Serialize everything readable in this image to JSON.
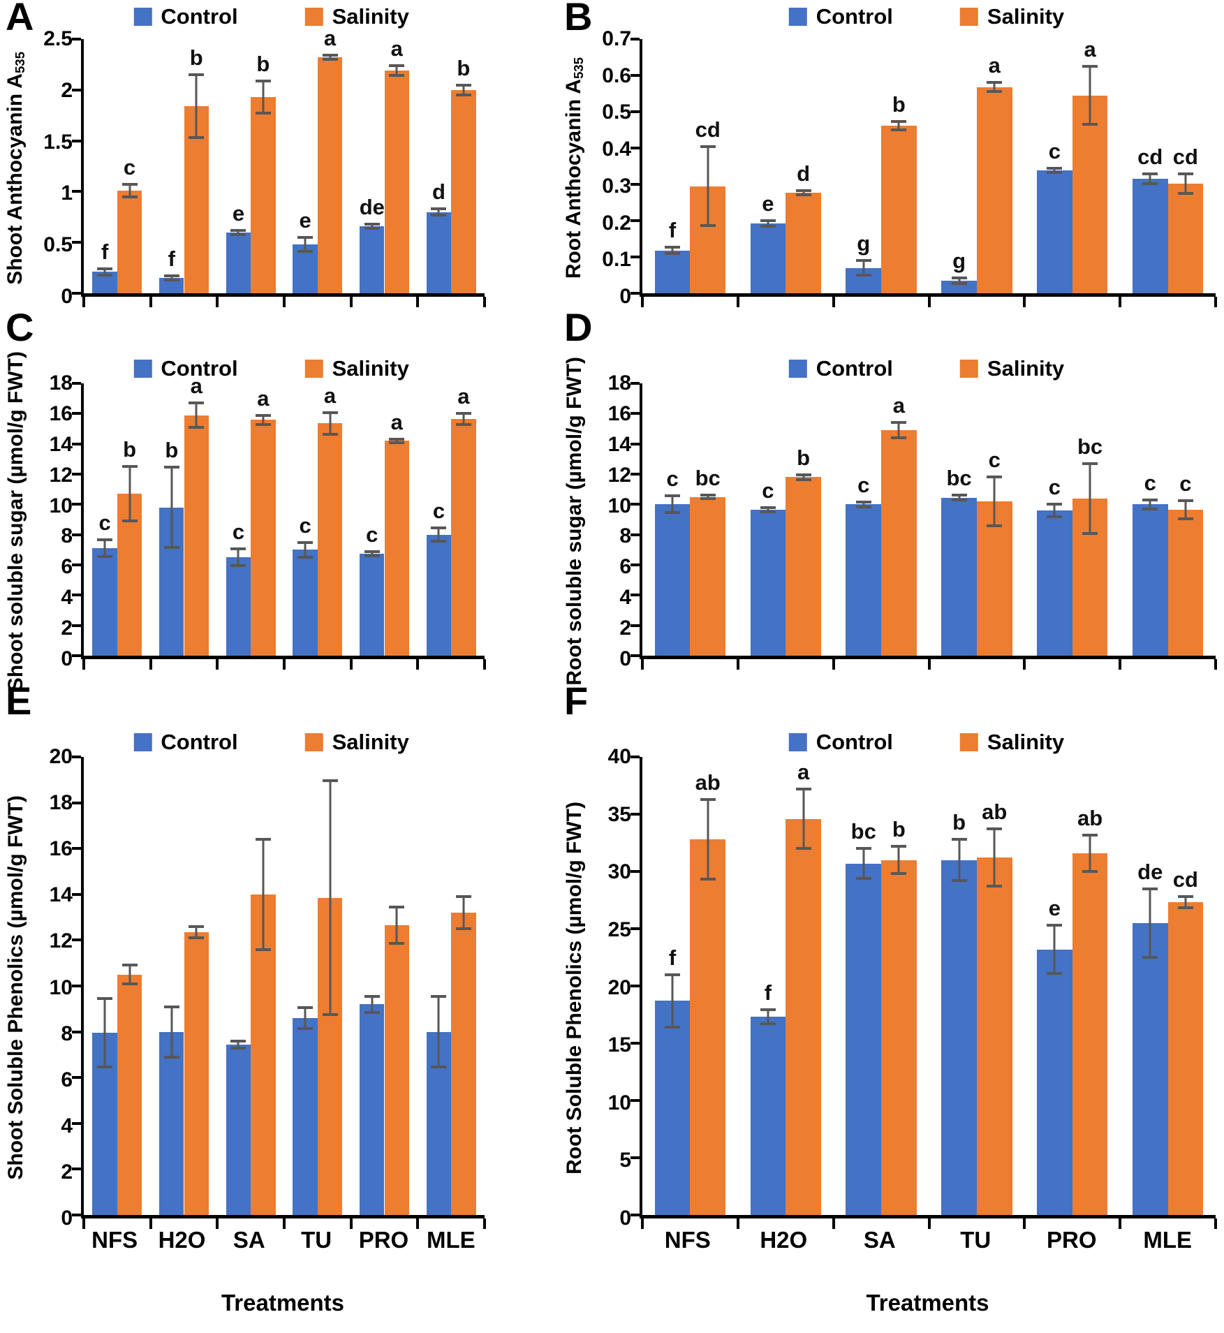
{
  "legend": {
    "control_label": "Control",
    "salinity_label": "Salinity"
  },
  "colors": {
    "control": "#4472C4",
    "salinity": "#ED7D31",
    "error_bar": "#575757",
    "axis": "#000000"
  },
  "x_axis": {
    "categories": [
      "NFS",
      "H2O",
      "SA",
      "TU",
      "PRO",
      "MLE"
    ],
    "title": "Treatments"
  },
  "chart_data": [
    {
      "id": "A",
      "type": "bar",
      "row": "r1",
      "col": "c1",
      "ylabel": "Shoot Anthocyanin A",
      "ylabel_sub": "535",
      "ylim": [
        0,
        2.5
      ],
      "yticks": [
        "0",
        "0.5",
        "1",
        "1.5",
        "2",
        "2.5"
      ],
      "categories": [
        "NFS",
        "H2O",
        "SA",
        "TU",
        "PRO",
        "MLE"
      ],
      "show_x_labels": false,
      "show_x_title": false,
      "series": [
        {
          "name": "Control",
          "values": [
            0.21,
            0.15,
            0.6,
            0.48,
            0.66,
            0.8
          ],
          "errors": [
            0.03,
            0.02,
            0.02,
            0.07,
            0.02,
            0.03
          ],
          "letters": [
            "f",
            "f",
            "e",
            "e",
            "de",
            "d"
          ]
        },
        {
          "name": "Salinity",
          "values": [
            1.01,
            1.84,
            1.93,
            2.32,
            2.19,
            2.0
          ],
          "errors": [
            0.06,
            0.31,
            0.16,
            0.02,
            0.05,
            0.05
          ],
          "letters": [
            "c",
            "b",
            "b",
            "a",
            "a",
            "b"
          ]
        }
      ]
    },
    {
      "id": "B",
      "type": "bar",
      "row": "r1",
      "col": "c2",
      "ylabel": "Root Anthocyanin A",
      "ylabel_sub": "535",
      "ylim": [
        0,
        0.7
      ],
      "yticks": [
        "0",
        "0.1",
        "0.2",
        "0.3",
        "0.4",
        "0.5",
        "0.6",
        "0.7"
      ],
      "categories": [
        "NFS",
        "H2O",
        "SA",
        "TU",
        "PRO",
        "MLE"
      ],
      "show_x_labels": false,
      "show_x_title": false,
      "series": [
        {
          "name": "Control",
          "values": [
            0.118,
            0.192,
            0.07,
            0.035,
            0.338,
            0.315
          ],
          "errors": [
            0.008,
            0.008,
            0.02,
            0.008,
            0.006,
            0.013
          ],
          "letters": [
            "f",
            "e",
            "g",
            "g",
            "c",
            "cd"
          ]
        },
        {
          "name": "Salinity",
          "values": [
            0.295,
            0.277,
            0.462,
            0.568,
            0.545,
            0.302
          ],
          "errors": [
            0.108,
            0.005,
            0.012,
            0.012,
            0.08,
            0.027
          ],
          "letters": [
            "cd",
            "d",
            "b",
            "a",
            "a",
            "cd"
          ]
        }
      ]
    },
    {
      "id": "C",
      "type": "bar",
      "row": "r2",
      "col": "c1",
      "ylabel": "Shoot soluble sugar (µmol/g FWT)",
      "ylabel_sub": "",
      "ylim": [
        0,
        18
      ],
      "yticks": [
        "0",
        "2",
        "4",
        "6",
        "8",
        "10",
        "12",
        "14",
        "16",
        "18"
      ],
      "categories": [
        "NFS",
        "H2O",
        "SA",
        "TU",
        "PRO",
        "MLE"
      ],
      "show_x_labels": false,
      "show_x_title": false,
      "series": [
        {
          "name": "Control",
          "values": [
            7.1,
            9.8,
            6.5,
            7.0,
            6.75,
            8.0
          ],
          "errors": [
            0.55,
            2.65,
            0.55,
            0.5,
            0.15,
            0.45
          ],
          "letters": [
            "c",
            "b",
            "c",
            "c",
            "c",
            "c"
          ]
        },
        {
          "name": "Salinity",
          "values": [
            10.7,
            15.9,
            15.6,
            15.35,
            14.2,
            15.65
          ],
          "errors": [
            1.8,
            0.8,
            0.3,
            0.7,
            0.1,
            0.35
          ],
          "letters": [
            "b",
            "a",
            "a",
            "a",
            "a",
            "a"
          ]
        }
      ]
    },
    {
      "id": "D",
      "type": "bar",
      "row": "r2",
      "col": "c2",
      "ylabel": "Root soluble sugar (µmol/g FWT)",
      "ylabel_sub": "",
      "ylim": [
        0,
        18
      ],
      "yticks": [
        "0",
        "2",
        "4",
        "6",
        "8",
        "10",
        "12",
        "14",
        "16",
        "18"
      ],
      "categories": [
        "NFS",
        "H2O",
        "SA",
        "TU",
        "PRO",
        "MLE"
      ],
      "show_x_labels": false,
      "show_x_title": false,
      "series": [
        {
          "name": "Control",
          "values": [
            10.0,
            9.65,
            10.0,
            10.45,
            9.6,
            10.0
          ],
          "errors": [
            0.55,
            0.15,
            0.15,
            0.15,
            0.4,
            0.3
          ],
          "letters": [
            "c",
            "c",
            "c",
            "bc",
            "c",
            "c"
          ]
        },
        {
          "name": "Salinity",
          "values": [
            10.5,
            11.8,
            14.9,
            10.2,
            10.4,
            9.65
          ],
          "errors": [
            0.12,
            0.15,
            0.5,
            1.6,
            2.3,
            0.6
          ],
          "letters": [
            "bc",
            "b",
            "a",
            "c",
            "bc",
            "c"
          ]
        }
      ]
    },
    {
      "id": "E",
      "type": "bar",
      "row": "r3",
      "col": "c1",
      "ylabel": "Shoot Soluble Phenolics (µmol/g FWT)",
      "ylabel_sub": "",
      "ylim": [
        0,
        20
      ],
      "yticks": [
        "0",
        "2",
        "4",
        "6",
        "8",
        "10",
        "12",
        "14",
        "16",
        "18",
        "20"
      ],
      "categories": [
        "NFS",
        "H2O",
        "SA",
        "TU",
        "PRO",
        "MLE"
      ],
      "show_x_labels": true,
      "show_x_title": true,
      "series": [
        {
          "name": "Control",
          "values": [
            7.95,
            8.0,
            7.45,
            8.6,
            9.2,
            8.0
          ],
          "errors": [
            1.5,
            1.1,
            0.15,
            0.45,
            0.35,
            1.55
          ],
          "letters": [
            "",
            "",
            "",
            "",
            "",
            ""
          ]
        },
        {
          "name": "Salinity",
          "values": [
            10.5,
            12.35,
            14.0,
            13.85,
            12.65,
            13.2
          ],
          "errors": [
            0.4,
            0.25,
            2.4,
            5.1,
            0.8,
            0.7
          ],
          "letters": [
            "",
            "",
            "",
            "",
            "",
            ""
          ]
        }
      ]
    },
    {
      "id": "F",
      "type": "bar",
      "row": "r3",
      "col": "c2",
      "ylabel": "Root Soluble Phenolics (µmol/g FWT)",
      "ylabel_sub": "",
      "ylim": [
        0,
        40
      ],
      "yticks": [
        "0",
        "5",
        "10",
        "15",
        "20",
        "25",
        "30",
        "35",
        "40"
      ],
      "categories": [
        "NFS",
        "H2O",
        "SA",
        "TU",
        "PRO",
        "MLE"
      ],
      "show_x_labels": true,
      "show_x_title": true,
      "series": [
        {
          "name": "Control",
          "values": [
            18.7,
            17.3,
            30.7,
            31.0,
            23.2,
            25.5
          ],
          "errors": [
            2.3,
            0.6,
            1.3,
            1.8,
            2.1,
            3.0
          ],
          "letters": [
            "f",
            "f",
            "bc",
            "b",
            "e",
            "de"
          ]
        },
        {
          "name": "Salinity",
          "values": [
            32.8,
            34.6,
            31.0,
            31.2,
            31.6,
            27.3
          ],
          "errors": [
            3.5,
            2.6,
            1.2,
            2.5,
            1.6,
            0.5
          ],
          "letters": [
            "ab",
            "a",
            "b",
            "ab",
            "ab",
            "cd"
          ]
        }
      ]
    }
  ]
}
